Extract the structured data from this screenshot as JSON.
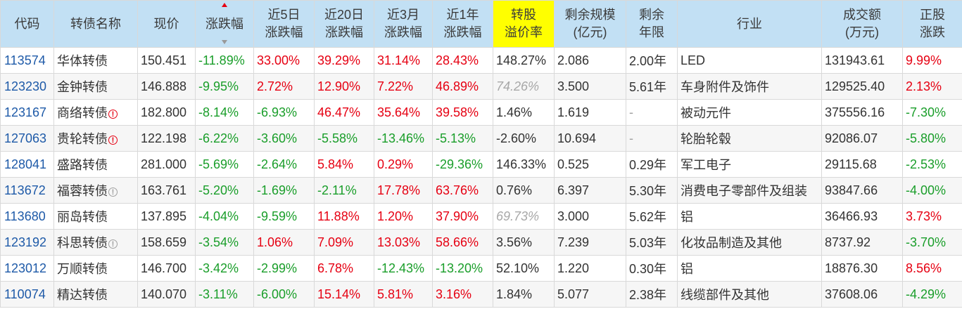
{
  "headers": [
    {
      "key": "code",
      "l1": "代码",
      "l2": ""
    },
    {
      "key": "name",
      "l1": "转债名称",
      "l2": ""
    },
    {
      "key": "price",
      "l1": "现价",
      "l2": ""
    },
    {
      "key": "chg",
      "l1": "涨跌幅",
      "l2": ""
    },
    {
      "key": "chg5d",
      "l1": "近5日",
      "l2": "涨跌幅"
    },
    {
      "key": "chg20d",
      "l1": "近20日",
      "l2": "涨跌幅"
    },
    {
      "key": "chg3m",
      "l1": "近3月",
      "l2": "涨跌幅"
    },
    {
      "key": "chg1y",
      "l1": "近1年",
      "l2": "涨跌幅"
    },
    {
      "key": "premium",
      "l1": "转股",
      "l2": "溢价率"
    },
    {
      "key": "scale",
      "l1": "剩余规模",
      "l2": "(亿元)"
    },
    {
      "key": "years",
      "l1": "剩余",
      "l2": "年限"
    },
    {
      "key": "industry",
      "l1": "行业",
      "l2": ""
    },
    {
      "key": "volume",
      "l1": "成交额",
      "l2": "(万元)"
    },
    {
      "key": "stock_chg",
      "l1": "正股",
      "l2": "涨跌"
    }
  ],
  "colors": {
    "up": "#e60012",
    "down": "#1a9e2a",
    "header_bg": "#c2e0f4",
    "highlight": "#ffff00",
    "code_link": "#1e5aa8"
  },
  "sort_column": "涨跌幅",
  "rows": [
    {
      "code": "113574",
      "name": "华体转债",
      "icon": "",
      "price": "150.451",
      "chg": "-11.89%",
      "chg5d": "33.00%",
      "chg20d": "39.29%",
      "chg3m": "31.14%",
      "chg1y": "28.43%",
      "premium": "148.27%",
      "premium_style": "normal",
      "scale": "2.086",
      "years": "2.00年",
      "industry": "LED",
      "volume": "131943.61",
      "stock_chg": "9.99%"
    },
    {
      "code": "123230",
      "name": "金钟转债",
      "icon": "",
      "price": "146.888",
      "chg": "-9.95%",
      "chg5d": "2.72%",
      "chg20d": "12.90%",
      "chg3m": "7.22%",
      "chg1y": "46.89%",
      "premium": "74.26%",
      "premium_style": "gray",
      "scale": "3.500",
      "years": "5.61年",
      "industry": "车身附件及饰件",
      "volume": "129525.40",
      "stock_chg": "2.13%"
    },
    {
      "code": "123167",
      "name": "商络转债",
      "icon": "red",
      "price": "182.800",
      "chg": "-8.14%",
      "chg5d": "-6.93%",
      "chg20d": "46.47%",
      "chg3m": "35.64%",
      "chg1y": "39.58%",
      "premium": "1.46%",
      "premium_style": "normal",
      "scale": "1.619",
      "years": "-",
      "industry": "被动元件",
      "volume": "375556.16",
      "stock_chg": "-7.30%"
    },
    {
      "code": "127063",
      "name": "贵轮转债",
      "icon": "red",
      "price": "122.198",
      "chg": "-6.22%",
      "chg5d": "-3.60%",
      "chg20d": "-5.58%",
      "chg3m": "-13.46%",
      "chg1y": "-5.13%",
      "premium": "-2.60%",
      "premium_style": "normal",
      "scale": "10.694",
      "years": "-",
      "industry": "轮胎轮毂",
      "volume": "92086.07",
      "stock_chg": "-5.80%"
    },
    {
      "code": "128041",
      "name": "盛路转债",
      "icon": "",
      "price": "281.000",
      "chg": "-5.69%",
      "chg5d": "-2.64%",
      "chg20d": "5.84%",
      "chg3m": "0.29%",
      "chg1y": "-29.36%",
      "premium": "146.33%",
      "premium_style": "normal",
      "scale": "0.525",
      "years": "0.29年",
      "industry": "军工电子",
      "volume": "29115.68",
      "stock_chg": "-2.53%"
    },
    {
      "code": "113672",
      "name": "福蓉转债",
      "icon": "gray",
      "price": "163.761",
      "chg": "-5.20%",
      "chg5d": "-1.69%",
      "chg20d": "-2.11%",
      "chg3m": "17.78%",
      "chg1y": "63.76%",
      "premium": "0.76%",
      "premium_style": "normal",
      "scale": "6.397",
      "years": "5.30年",
      "industry": "消费电子零部件及组装",
      "volume": "93847.66",
      "stock_chg": "-4.00%"
    },
    {
      "code": "113680",
      "name": "丽岛转债",
      "icon": "",
      "price": "137.895",
      "chg": "-4.04%",
      "chg5d": "-9.59%",
      "chg20d": "11.88%",
      "chg3m": "1.20%",
      "chg1y": "37.90%",
      "premium": "69.73%",
      "premium_style": "gray",
      "scale": "3.000",
      "years": "5.62年",
      "industry": "铝",
      "volume": "36466.93",
      "stock_chg": "3.73%"
    },
    {
      "code": "123192",
      "name": "科思转债",
      "icon": "gray",
      "price": "158.659",
      "chg": "-3.54%",
      "chg5d": "1.06%",
      "chg20d": "7.09%",
      "chg3m": "13.03%",
      "chg1y": "58.66%",
      "premium": "3.56%",
      "premium_style": "normal",
      "scale": "7.239",
      "years": "5.03年",
      "industry": "化妆品制造及其他",
      "volume": "8737.92",
      "stock_chg": "-3.70%"
    },
    {
      "code": "123012",
      "name": "万顺转债",
      "icon": "",
      "price": "146.700",
      "chg": "-3.42%",
      "chg5d": "-2.99%",
      "chg20d": "6.78%",
      "chg3m": "-12.43%",
      "chg1y": "-13.20%",
      "premium": "52.10%",
      "premium_style": "normal",
      "scale": "1.220",
      "years": "0.30年",
      "industry": "铝",
      "volume": "18876.30",
      "stock_chg": "8.56%"
    },
    {
      "code": "110074",
      "name": "精达转债",
      "icon": "",
      "price": "140.070",
      "chg": "-3.11%",
      "chg5d": "-6.00%",
      "chg20d": "15.14%",
      "chg3m": "5.81%",
      "chg1y": "3.16%",
      "premium": "1.84%",
      "premium_style": "normal",
      "scale": "5.077",
      "years": "2.38年",
      "industry": "线缆部件及其他",
      "volume": "37608.06",
      "stock_chg": "-4.29%"
    }
  ]
}
